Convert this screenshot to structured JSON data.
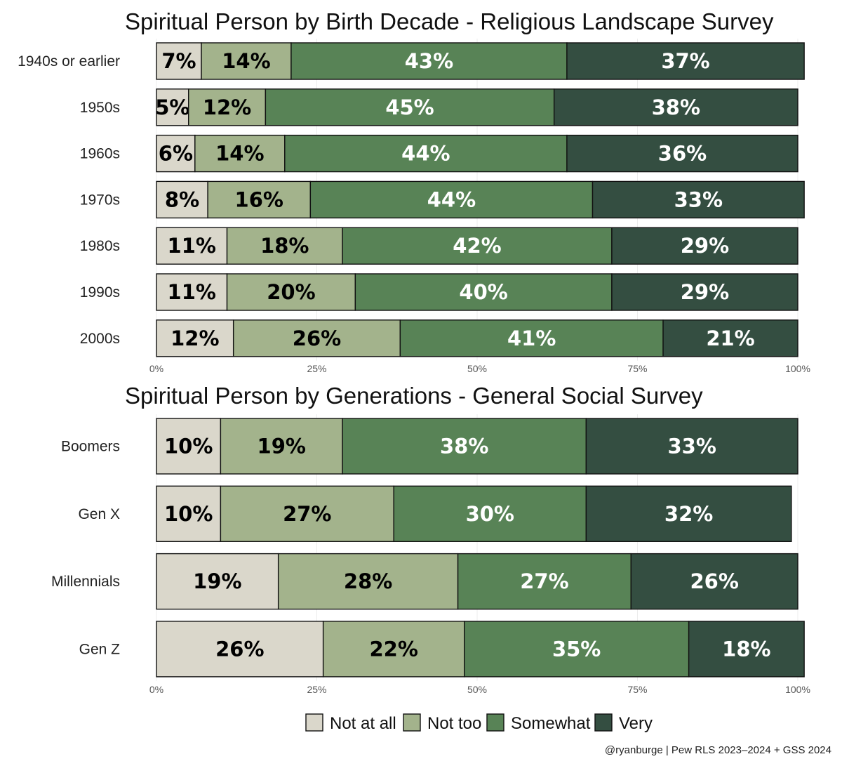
{
  "series_colors": {
    "Not at all": "#dad7cb",
    "Not too": "#a3b38c",
    "Somewhat": "#588356",
    "Very": "#344e41"
  },
  "label_colors": {
    "Not at all": "#000000",
    "Not too": "#000000",
    "Somewhat": "#ffffff",
    "Very": "#ffffff"
  },
  "legend": [
    "Not at all",
    "Not too",
    "Somewhat",
    "Very"
  ],
  "caption": "@ryanburge | Pew RLS 2023–2024 + GSS 2024",
  "chart_data": [
    {
      "type": "bar",
      "orientation": "horizontal",
      "stacked": true,
      "title": "Spiritual Person by Birth Decade - Religious Landscape Survey",
      "categories": [
        "1940s or earlier",
        "1950s",
        "1960s",
        "1970s",
        "1980s",
        "1990s",
        "2000s"
      ],
      "series": [
        {
          "name": "Not at all",
          "values": [
            7,
            5,
            6,
            8,
            11,
            11,
            12
          ]
        },
        {
          "name": "Not too",
          "values": [
            14,
            12,
            14,
            16,
            18,
            20,
            26
          ]
        },
        {
          "name": "Somewhat",
          "values": [
            43,
            45,
            44,
            44,
            42,
            40,
            41
          ]
        },
        {
          "name": "Very",
          "values": [
            37,
            38,
            36,
            33,
            29,
            29,
            21
          ]
        }
      ],
      "xlim": [
        0,
        100
      ],
      "xticks": [
        "0%",
        "25%",
        "50%",
        "75%",
        "100%"
      ]
    },
    {
      "type": "bar",
      "orientation": "horizontal",
      "stacked": true,
      "title": "Spiritual Person by Generations - General Social Survey",
      "categories": [
        "Boomers",
        "Gen X",
        "Millennials",
        "Gen Z"
      ],
      "series": [
        {
          "name": "Not at all",
          "values": [
            10,
            10,
            19,
            26
          ]
        },
        {
          "name": "Not too",
          "values": [
            19,
            27,
            28,
            22
          ]
        },
        {
          "name": "Somewhat",
          "values": [
            38,
            30,
            27,
            35
          ]
        },
        {
          "name": "Very",
          "values": [
            33,
            32,
            26,
            18
          ]
        }
      ],
      "xlim": [
        0,
        100
      ],
      "xticks": [
        "0%",
        "25%",
        "50%",
        "75%",
        "100%"
      ]
    }
  ]
}
